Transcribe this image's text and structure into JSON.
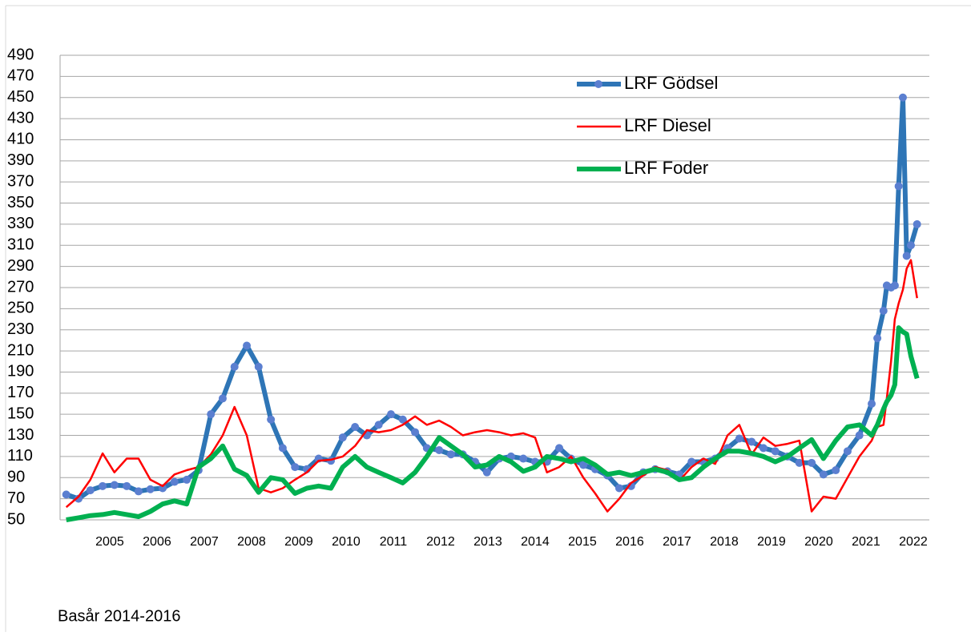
{
  "chart_data": {
    "type": "line",
    "annotation": "Basår 2014-2016",
    "x": [
      2004.08,
      2004.34,
      2004.59,
      2004.85,
      2005.1,
      2005.36,
      2005.61,
      2005.86,
      2006.12,
      2006.37,
      2006.63,
      2006.88,
      2007.14,
      2007.39,
      2007.64,
      2007.9,
      2008.15,
      2008.41,
      2008.66,
      2008.92,
      2009.17,
      2009.42,
      2009.68,
      2009.93,
      2010.19,
      2010.44,
      2010.69,
      2010.95,
      2011.2,
      2011.46,
      2011.71,
      2011.97,
      2012.22,
      2012.47,
      2012.73,
      2012.98,
      2013.24,
      2013.49,
      2013.75,
      2014.0,
      2014.25,
      2014.51,
      2014.76,
      2015.02,
      2015.27,
      2015.53,
      2015.78,
      2016.03,
      2016.29,
      2016.54,
      2016.8,
      2017.05,
      2017.31,
      2017.56,
      2017.81,
      2018.07,
      2018.32,
      2018.58,
      2018.83,
      2019.08,
      2019.34,
      2019.59,
      2019.85,
      2020.1,
      2020.36,
      2020.61,
      2020.86,
      2021.12,
      2021.24,
      2021.37,
      2021.44,
      2021.53,
      2021.61,
      2021.69,
      2021.78,
      2021.86,
      2021.95,
      2022.08
    ],
    "series": [
      {
        "name": "LRF Gödsel",
        "color": "#2e75b6",
        "marker": "circle",
        "marker_color": "#5b7fd0",
        "values": [
          74,
          70,
          78,
          82,
          83,
          82,
          77,
          79,
          80,
          86,
          88,
          97,
          150,
          165,
          195,
          215,
          195,
          145,
          118,
          100,
          98,
          108,
          106,
          128,
          138,
          130,
          140,
          150,
          145,
          133,
          118,
          116,
          112,
          112,
          105,
          95,
          108,
          110,
          108,
          105,
          105,
          118,
          108,
          102,
          98,
          92,
          80,
          82,
          95,
          98,
          96,
          93,
          105,
          105,
          108,
          118,
          127,
          124,
          118,
          115,
          110,
          104,
          104,
          93,
          97,
          115,
          130,
          160,
          222,
          248,
          272,
          270,
          272,
          366,
          450,
          300,
          310,
          330
        ]
      },
      {
        "name": "LRF Diesel",
        "color": "#ff0000",
        "values": [
          62,
          72,
          88,
          113,
          95,
          108,
          108,
          88,
          82,
          93,
          97,
          100,
          112,
          130,
          157,
          130,
          80,
          76,
          80,
          88,
          95,
          106,
          107,
          110,
          120,
          135,
          133,
          135,
          140,
          148,
          140,
          144,
          138,
          130,
          133,
          135,
          133,
          130,
          132,
          128,
          95,
          100,
          110,
          90,
          75,
          58,
          70,
          85,
          92,
          100,
          97,
          87,
          100,
          108,
          103,
          130,
          140,
          112,
          128,
          120,
          122,
          125,
          58,
          72,
          70,
          90,
          110,
          125,
          138,
          140,
          165,
          200,
          240,
          255,
          268,
          288,
          296,
          260
        ]
      },
      {
        "name": "LRF Foder",
        "color": "#00b050",
        "values": [
          50,
          52,
          54,
          55,
          57,
          55,
          53,
          58,
          65,
          68,
          65,
          100,
          108,
          120,
          98,
          92,
          76,
          90,
          88,
          75,
          80,
          82,
          80,
          100,
          110,
          100,
          95,
          90,
          85,
          95,
          110,
          128,
          120,
          112,
          100,
          102,
          110,
          105,
          96,
          100,
          110,
          108,
          105,
          108,
          102,
          93,
          95,
          92,
          95,
          98,
          95,
          88,
          90,
          100,
          108,
          115,
          115,
          113,
          110,
          105,
          110,
          118,
          126,
          108,
          125,
          138,
          140,
          130,
          140,
          155,
          162,
          168,
          178,
          232,
          228,
          226,
          205,
          184
        ]
      }
    ],
    "xlim": [
      2003.95,
      2022.34
    ],
    "xticks": [
      2005,
      2006,
      2007,
      2008,
      2009,
      2010,
      2011,
      2012,
      2013,
      2014,
      2015,
      2016,
      2017,
      2018,
      2019,
      2020,
      2021,
      2022
    ],
    "ylim": [
      50,
      490
    ],
    "yticks": [
      50,
      70,
      90,
      110,
      130,
      150,
      170,
      190,
      210,
      230,
      250,
      270,
      290,
      310,
      330,
      350,
      370,
      390,
      410,
      430,
      450,
      470,
      490
    ],
    "grid": true,
    "legend": "top-right"
  }
}
